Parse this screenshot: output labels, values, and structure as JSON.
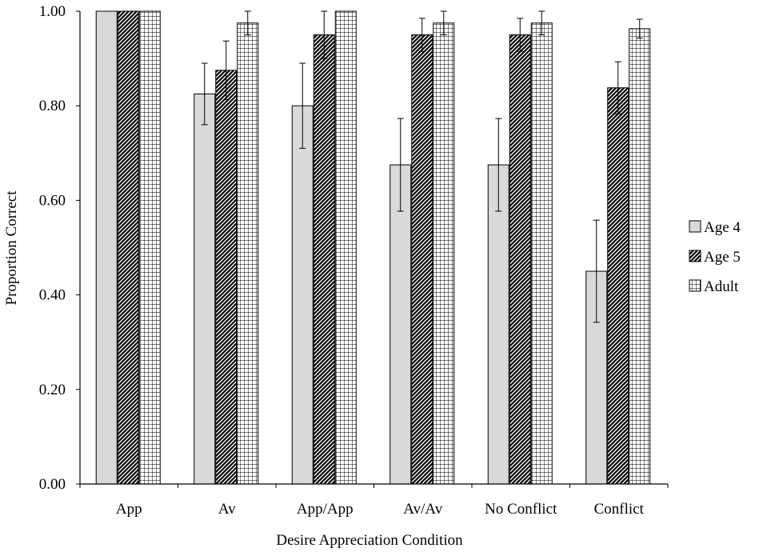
{
  "chart_data": {
    "type": "bar",
    "title": "",
    "xlabel": "Desire Appreciation Condition",
    "ylabel": "Proportion Correct",
    "ylim": [
      0,
      1
    ],
    "yticks": [
      "0.00",
      "0.20",
      "0.40",
      "0.60",
      "0.80",
      "1.00"
    ],
    "categories": [
      "App",
      "Av",
      "App/App",
      "Av/Av",
      "No Conflict",
      "Conflict"
    ],
    "series": [
      {
        "name": "Age 4",
        "values": [
          1.0,
          0.825,
          0.8,
          0.675,
          0.675,
          0.45
        ],
        "error": [
          0.0,
          0.065,
          0.09,
          0.098,
          0.098,
          0.108
        ]
      },
      {
        "name": "Age 5",
        "values": [
          1.0,
          0.875,
          0.95,
          0.95,
          0.95,
          0.838
        ],
        "error": [
          0.0,
          0.062,
          0.05,
          0.035,
          0.035,
          0.055
        ]
      },
      {
        "name": "Adult",
        "values": [
          1.0,
          0.975,
          1.0,
          0.975,
          0.975,
          0.963
        ],
        "error": [
          0.0,
          0.025,
          0.0,
          0.025,
          0.025,
          0.02
        ]
      }
    ],
    "legend_position": "right",
    "grid": false
  }
}
